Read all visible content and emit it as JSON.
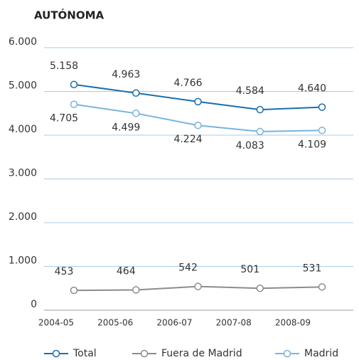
{
  "chart_data": {
    "type": "line",
    "title": "AUTÓNOMA",
    "categories": [
      "2004-05",
      "2005-06",
      "2006-07",
      "2007-08",
      "2008-09"
    ],
    "series": [
      {
        "name": "Total",
        "color": "#1a6fad",
        "values": [
          5158,
          4963,
          4766,
          4584,
          4640
        ],
        "value_labels": [
          "5.158",
          "4.963",
          "4.766",
          "4.584",
          "4.640"
        ]
      },
      {
        "name": "Fuera de Madrid",
        "color": "#8c8c8c",
        "values": [
          453,
          464,
          542,
          501,
          531
        ]
      },
      {
        "name": "Madrid",
        "color": "#7ab3dc",
        "values": [
          4705,
          4499,
          4224,
          4083,
          4109
        ],
        "value_labels": [
          "4.705",
          "4.499",
          "4.224",
          "4.083",
          "4.109"
        ]
      }
    ],
    "ylim": [
      0,
      6000
    ],
    "yticks": [
      0,
      {
        "value": 1000,
        "label": "1.000"
      },
      {
        "value": 2000,
        "label": "2.000"
      },
      {
        "value": 3000,
        "label": "3.000"
      },
      {
        "value": 4000,
        "label": "4.000"
      },
      {
        "value": 5000,
        "label": "5.000"
      },
      {
        "value": 6000,
        "label": "6.000"
      }
    ],
    "grid": true
  }
}
